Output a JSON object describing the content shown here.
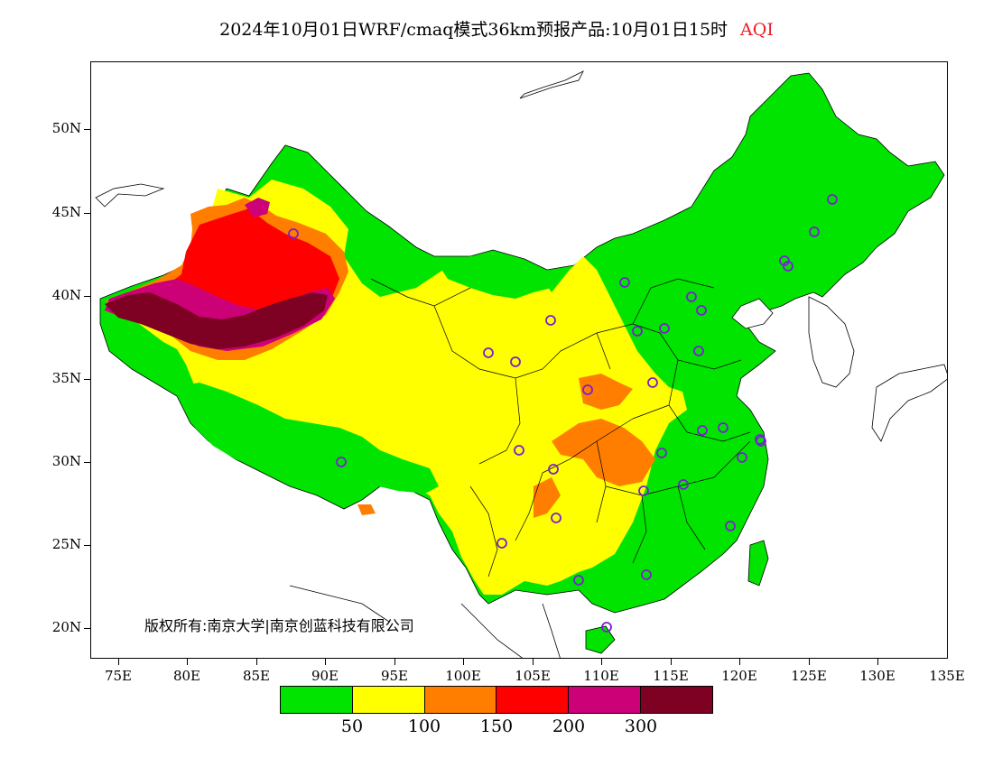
{
  "title": {
    "text": "2024年10月01日WRF/cmaq模式36km预报产品:10月01日15时",
    "variable": "AQI"
  },
  "axes": {
    "lat_labels": [
      "50N",
      "45N",
      "40N",
      "35N",
      "30N",
      "25N",
      "20N"
    ],
    "lon_labels": [
      "75E",
      "80E",
      "85E",
      "90E",
      "95E",
      "100E",
      "105E",
      "110E",
      "115E",
      "120E",
      "125E",
      "130E",
      "135E"
    ]
  },
  "copyright": "版权所有:南京大学|南京创蓝科技有限公司",
  "legend": {
    "colors": [
      "#00e400",
      "#ffff00",
      "#ff7e00",
      "#ff0000",
      "#cc0077",
      "#7e0023"
    ],
    "color_names": [
      "good",
      "moderate",
      "unhealthy-sensitive",
      "unhealthy",
      "very-unhealthy",
      "hazardous"
    ],
    "labels": [
      "50",
      "100",
      "150",
      "200",
      "300"
    ]
  },
  "map": {
    "lon_range": [
      73,
      135
    ],
    "lat_range": [
      18,
      54
    ]
  }
}
